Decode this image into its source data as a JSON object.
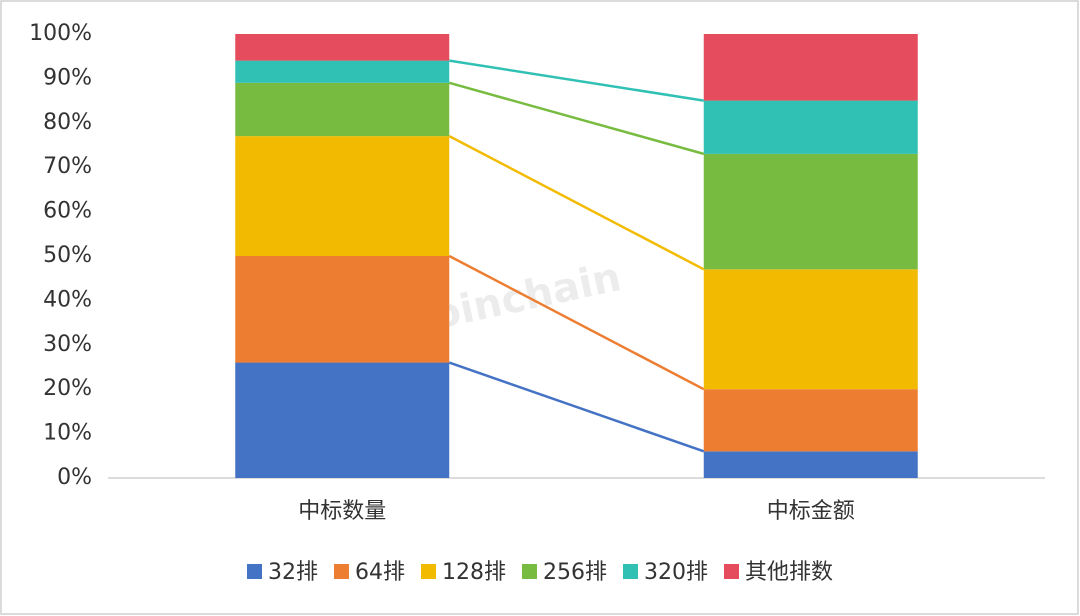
{
  "chart_data": {
    "type": "stacked_bar",
    "watermark": "Joinchain",
    "categories": [
      "中标数量",
      "中标金额"
    ],
    "series": [
      {
        "name": "32排",
        "color": "#4472c4",
        "values": [
          26,
          6
        ]
      },
      {
        "name": "64排",
        "color": "#ed7d31",
        "values": [
          24,
          14
        ]
      },
      {
        "name": "128排",
        "color": "#f2bb02",
        "values": [
          27,
          27
        ]
      },
      {
        "name": "256排",
        "color": "#77bc40",
        "values": [
          12,
          26
        ]
      },
      {
        "name": "320排",
        "color": "#30c1b4",
        "values": [
          5,
          12
        ]
      },
      {
        "name": "其他排数",
        "color": "#e54c5e",
        "values": [
          6,
          15
        ]
      }
    ],
    "ylim": [
      0,
      100
    ],
    "yticks": [
      {
        "value": 0,
        "label": "0%"
      },
      {
        "value": 10,
        "label": "10%"
      },
      {
        "value": 20,
        "label": "20%"
      },
      {
        "value": 30,
        "label": "30%"
      },
      {
        "value": 40,
        "label": "40%"
      },
      {
        "value": 50,
        "label": "50%"
      },
      {
        "value": 60,
        "label": "60%"
      },
      {
        "value": 70,
        "label": "70%"
      },
      {
        "value": 80,
        "label": "80%"
      },
      {
        "value": 90,
        "label": "90%"
      },
      {
        "value": 100,
        "label": "100%"
      }
    ],
    "grid": false,
    "connector_lines": true,
    "legend": "bottom"
  }
}
